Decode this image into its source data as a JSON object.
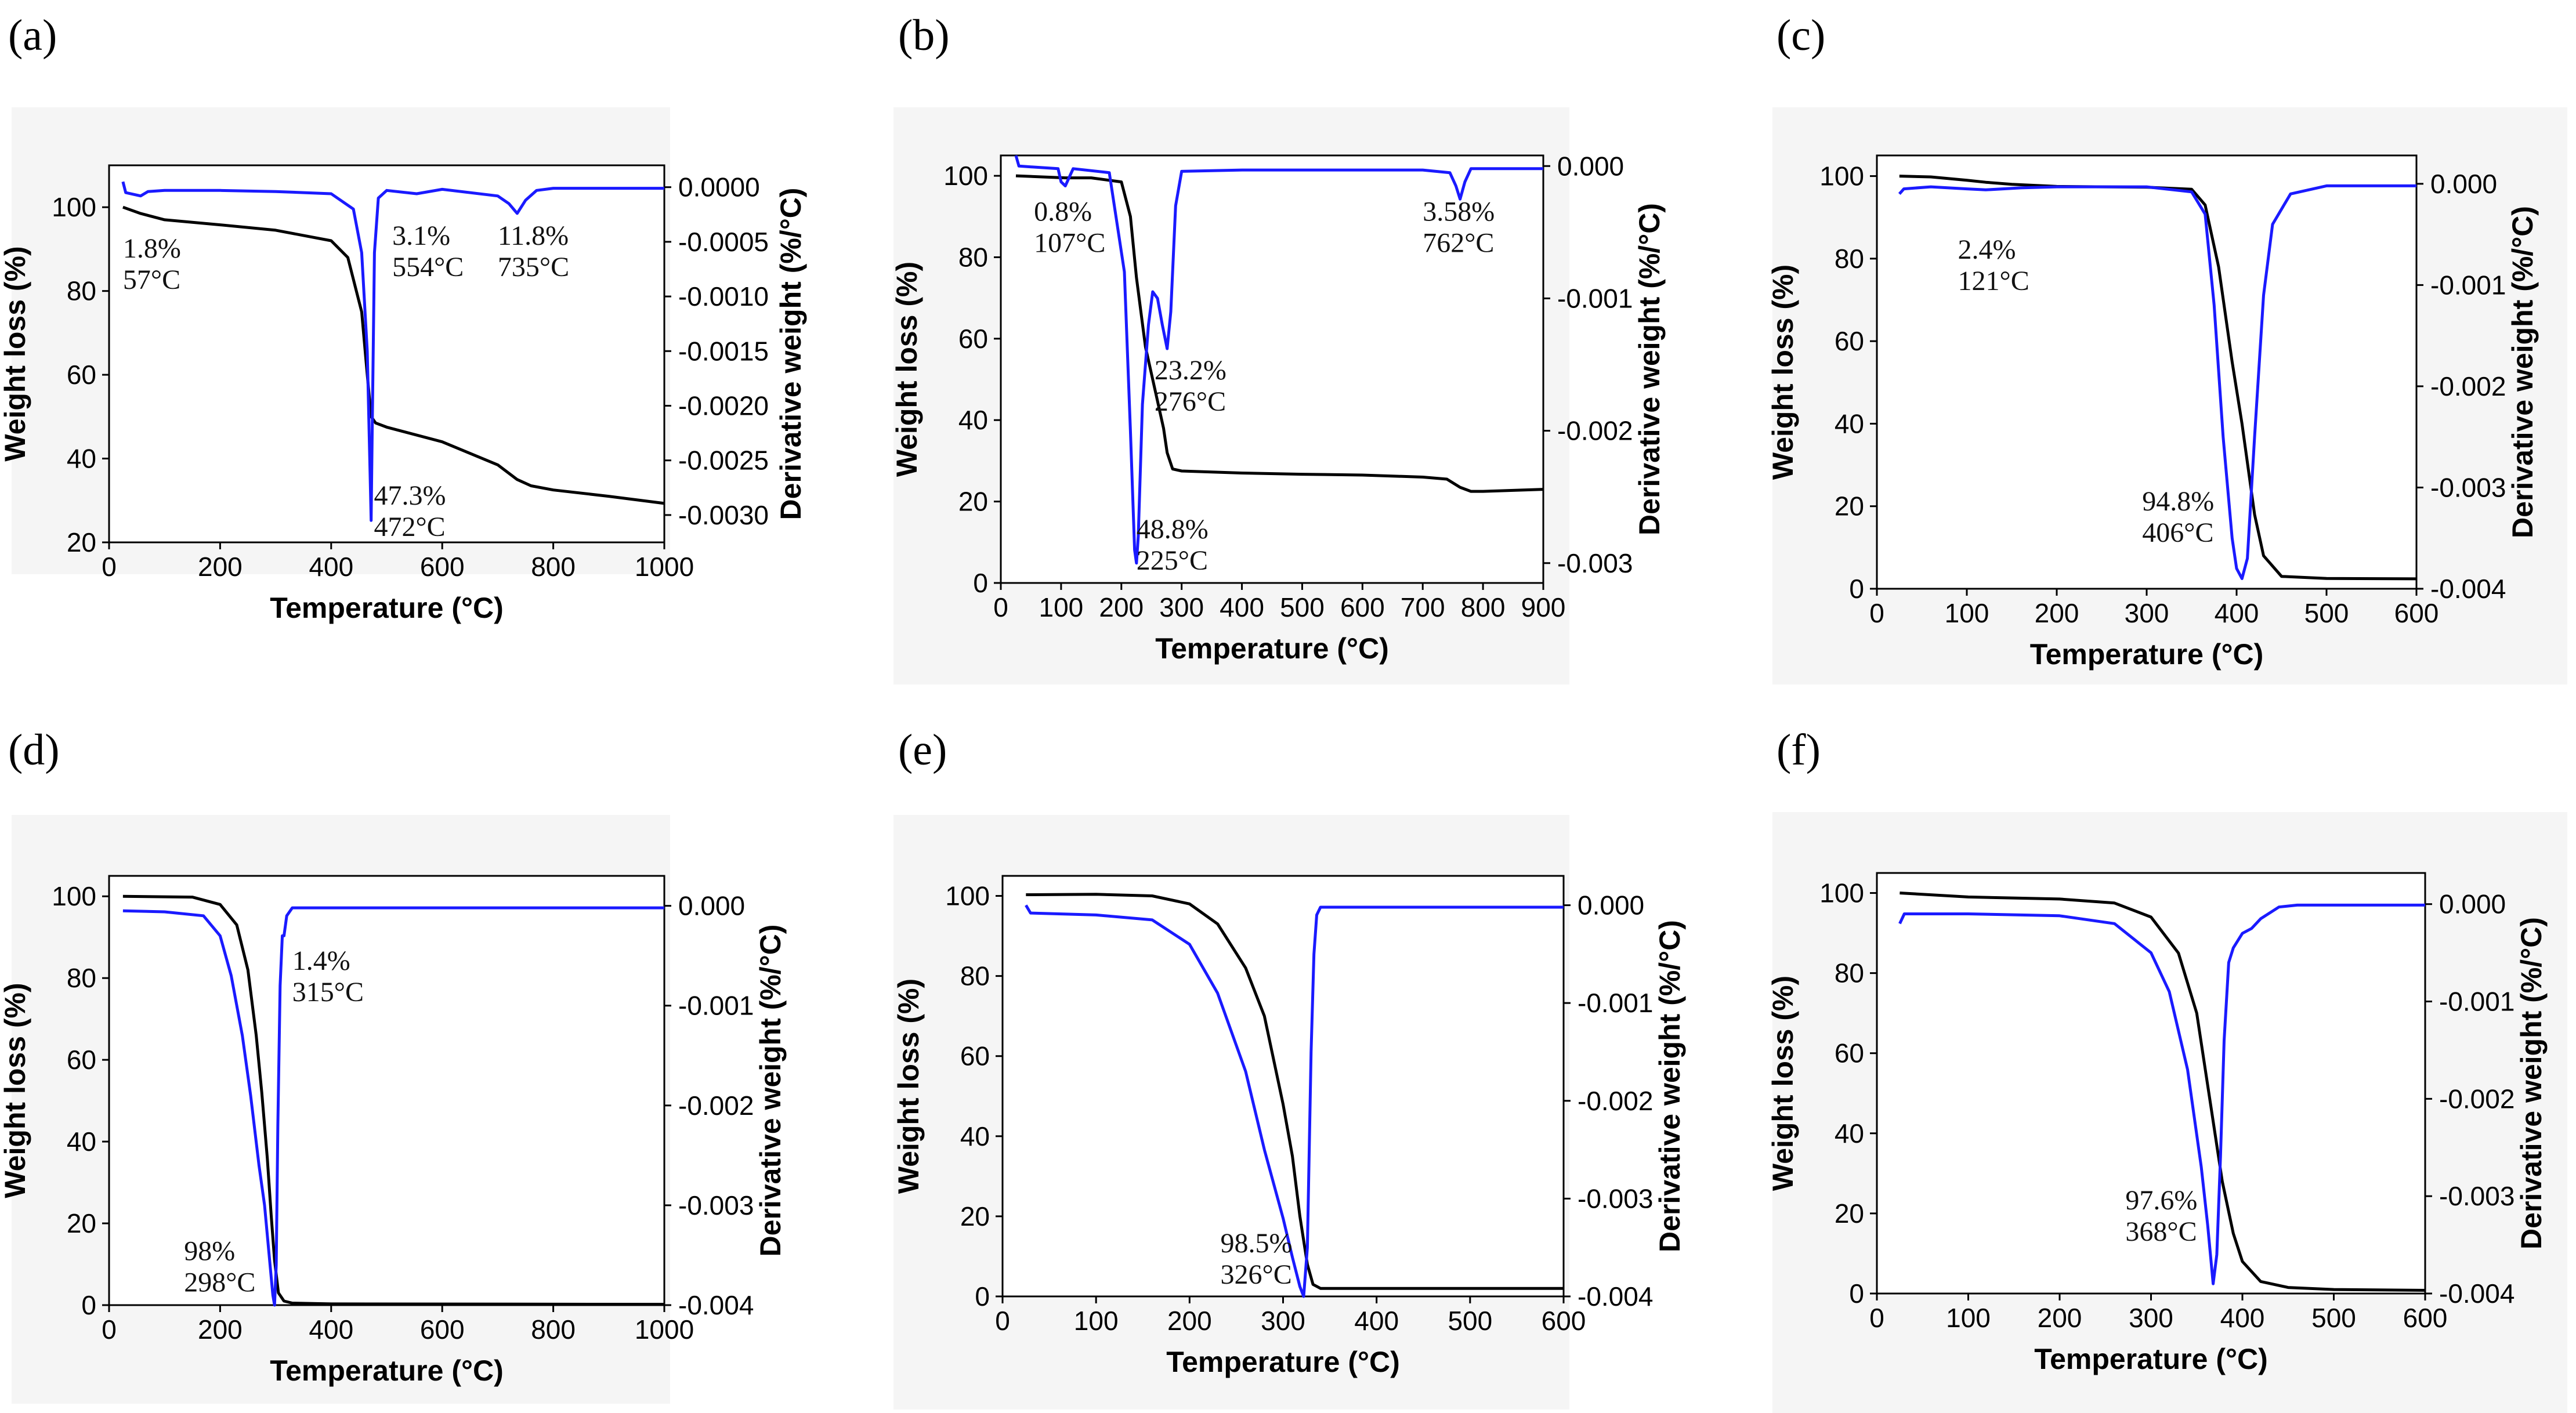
{
  "figure": {
    "colors": {
      "weight": "#000000",
      "derivative": "#1a1aff",
      "axis": "#000000",
      "panel_bg": "#f5f5f5"
    }
  },
  "chart_data": [
    {
      "panel": "(a)",
      "type": "line",
      "xlabel": "Temperature (°C)",
      "ylabel": "Weight loss (%)",
      "y2label": "Derivative weight (%/°C)",
      "xlim": [
        0,
        1000
      ],
      "ylim": [
        20,
        110
      ],
      "y2lim": [
        -0.00325,
        0.0002
      ],
      "xticks": [
        "0",
        "200",
        "400",
        "600",
        "800",
        "1000"
      ],
      "xtick_values": [
        0,
        200,
        400,
        600,
        800,
        1000
      ],
      "yticks": [
        "20",
        "40",
        "60",
        "80",
        "100"
      ],
      "ytick_values": [
        20,
        40,
        60,
        80,
        100
      ],
      "y2ticks": [
        "0.0000",
        "-0.0005",
        "-0.0010",
        "-0.0015",
        "-0.0020",
        "-0.0025",
        "-0.0030"
      ],
      "y2tick_values": [
        0,
        -0.0005,
        -0.001,
        -0.0015,
        -0.002,
        -0.0025,
        -0.003
      ],
      "series": [
        {
          "name": "Weight loss",
          "axis": "left",
          "color": "#000000",
          "x": [
            25,
            57,
            100,
            200,
            300,
            400,
            430,
            455,
            465,
            472,
            480,
            500,
            600,
            700,
            735,
            760,
            800,
            900,
            1000
          ],
          "y": [
            100,
            98.5,
            97,
            95.8,
            94.5,
            92,
            88,
            75,
            60,
            50,
            48.5,
            47.5,
            44,
            38.5,
            35,
            33.5,
            32.5,
            31,
            29.3
          ]
        },
        {
          "name": "Derivative weight",
          "axis": "right",
          "color": "#1a1aff",
          "x": [
            25,
            30,
            57,
            70,
            100,
            200,
            300,
            400,
            440,
            455,
            465,
            470,
            472,
            474,
            478,
            485,
            500,
            554,
            600,
            700,
            720,
            735,
            750,
            770,
            800,
            1000
          ],
          "y": [
            5e-05,
            -5e-05,
            -8e-05,
            -4e-05,
            -3e-05,
            -3e-05,
            -4e-05,
            -6e-05,
            -0.0002,
            -0.0006,
            -0.0015,
            -0.0026,
            -0.00305,
            -0.0022,
            -0.0006,
            -0.0001,
            -3e-05,
            -6e-05,
            -2e-05,
            -8e-05,
            -0.00015,
            -0.00024,
            -0.00012,
            -3e-05,
            -1e-05,
            -1e-05
          ]
        }
      ],
      "annotations": [
        {
          "lines": [
            "1.8%",
            "57°C"
          ],
          "x": 25,
          "y": 88
        },
        {
          "lines": [
            "3.1%",
            "554°C"
          ],
          "x": 510,
          "y": 91
        },
        {
          "lines": [
            "11.8%",
            "735°C"
          ],
          "x": 700,
          "y": 91
        },
        {
          "lines": [
            "47.3%",
            "472°C"
          ],
          "x": 477,
          "y": 29
        }
      ]
    },
    {
      "panel": "(b)",
      "type": "line",
      "xlabel": "Temperature (°C)",
      "ylabel": "Weight loss (%)",
      "y2label": "Derivative weight (%/°C)",
      "xlim": [
        0,
        900
      ],
      "ylim": [
        0,
        105
      ],
      "y2lim": [
        -0.00315,
        8e-05
      ],
      "xticks": [
        "0",
        "100",
        "200",
        "300",
        "400",
        "500",
        "600",
        "700",
        "800",
        "900"
      ],
      "xtick_values": [
        0,
        100,
        200,
        300,
        400,
        500,
        600,
        700,
        800,
        900
      ],
      "yticks": [
        "0",
        "20",
        "40",
        "60",
        "80",
        "100"
      ],
      "ytick_values": [
        0,
        20,
        40,
        60,
        80,
        100
      ],
      "y2ticks": [
        "0.000",
        "-0.001",
        "-0.002",
        "-0.003"
      ],
      "y2tick_values": [
        0,
        -0.001,
        -0.002,
        -0.003
      ],
      "series": [
        {
          "name": "Weight loss",
          "axis": "left",
          "color": "#000000",
          "x": [
            25,
            107,
            150,
            200,
            215,
            225,
            240,
            255,
            270,
            276,
            285,
            300,
            400,
            500,
            600,
            700,
            740,
            762,
            780,
            800,
            900
          ],
          "y": [
            100,
            99.5,
            99.5,
            98.5,
            90,
            75,
            58,
            48,
            38,
            32,
            28,
            27.5,
            27,
            26.7,
            26.5,
            26,
            25.5,
            23.5,
            22.5,
            22.5,
            23
          ]
        },
        {
          "name": "Derivative weight",
          "axis": "right",
          "color": "#1a1aff",
          "x": [
            25,
            30,
            95,
            100,
            107,
            112,
            120,
            180,
            205,
            215,
            222,
            225,
            228,
            235,
            245,
            252,
            260,
            268,
            276,
            282,
            290,
            300,
            400,
            500,
            600,
            700,
            745,
            755,
            762,
            770,
            780,
            900
          ],
          "y": [
            8e-05,
            0.0,
            -2e-05,
            -0.00012,
            -0.00015,
            -0.0001,
            -2e-05,
            -5e-05,
            -0.0008,
            -0.002,
            -0.0029,
            -0.003,
            -0.0028,
            -0.0018,
            -0.0012,
            -0.00095,
            -0.001,
            -0.0012,
            -0.00138,
            -0.0011,
            -0.0003,
            -4e-05,
            -3e-05,
            -3e-05,
            -3e-05,
            -3e-05,
            -5e-05,
            -0.00015,
            -0.00025,
            -0.00012,
            -2e-05,
            -2e-05
          ]
        }
      ],
      "annotations": [
        {
          "lines": [
            "0.8%",
            "107°C"
          ],
          "x": 55,
          "y": 89
        },
        {
          "lines": [
            "3.58%",
            "762°C"
          ],
          "x": 700,
          "y": 89
        },
        {
          "lines": [
            "23.2%",
            "276°C"
          ],
          "x": 255,
          "y": 50
        },
        {
          "lines": [
            "48.8%",
            "225°C"
          ],
          "x": 225,
          "y": 11
        }
      ]
    },
    {
      "panel": "(c)",
      "type": "line",
      "xlabel": "Temperature (°C)",
      "ylabel": "Weight loss (%)",
      "y2label": "Derivative weight (%/°C)",
      "xlim": [
        0,
        600
      ],
      "ylim": [
        0,
        105
      ],
      "y2lim": [
        -0.004,
        0.00028
      ],
      "xticks": [
        "0",
        "100",
        "200",
        "300",
        "400",
        "500",
        "600"
      ],
      "xtick_values": [
        0,
        100,
        200,
        300,
        400,
        500,
        600
      ],
      "yticks": [
        "0",
        "20",
        "40",
        "60",
        "80",
        "100"
      ],
      "ytick_values": [
        0,
        20,
        40,
        60,
        80,
        100
      ],
      "y2ticks": [
        "0.000",
        "-0.001",
        "-0.002",
        "-0.003",
        "-0.004"
      ],
      "y2tick_values": [
        0,
        -0.001,
        -0.002,
        -0.003,
        -0.004
      ],
      "series": [
        {
          "name": "Weight loss",
          "axis": "left",
          "color": "#000000",
          "x": [
            25,
            60,
            100,
            121,
            150,
            200,
            300,
            350,
            365,
            380,
            395,
            406,
            420,
            430,
            450,
            500,
            600
          ],
          "y": [
            100,
            99.8,
            99,
            98.5,
            98,
            97.5,
            97.3,
            96.8,
            93,
            78,
            55,
            40,
            18,
            8,
            3,
            2.5,
            2.4
          ]
        },
        {
          "name": "Derivative weight",
          "axis": "right",
          "color": "#1a1aff",
          "x": [
            25,
            30,
            60,
            100,
            121,
            160,
            200,
            300,
            350,
            365,
            375,
            385,
            395,
            400,
            406,
            412,
            420,
            430,
            440,
            460,
            500,
            600
          ],
          "y": [
            -0.0001,
            -5e-05,
            -3e-05,
            -5e-05,
            -6e-05,
            -4e-05,
            -3e-05,
            -3e-05,
            -8e-05,
            -0.0003,
            -0.0012,
            -0.0025,
            -0.0035,
            -0.0038,
            -0.0039,
            -0.0037,
            -0.0025,
            -0.0011,
            -0.0004,
            -0.0001,
            -2e-05,
            -2e-05
          ]
        }
      ],
      "annotations": [
        {
          "lines": [
            "2.4%",
            "121°C"
          ],
          "x": 90,
          "y": 80
        },
        {
          "lines": [
            "94.8%",
            "406°C"
          ],
          "x": 295,
          "y": 19
        }
      ]
    },
    {
      "panel": "(d)",
      "type": "line",
      "xlabel": "Temperature (°C)",
      "ylabel": "Weight loss (%)",
      "y2label": "Derivative weight (%/°C)",
      "xlim": [
        0,
        1000
      ],
      "ylim": [
        0,
        105
      ],
      "y2lim": [
        -0.004,
        0.0003
      ],
      "xticks": [
        "0",
        "200",
        "400",
        "600",
        "800",
        "1000"
      ],
      "xtick_values": [
        0,
        200,
        400,
        600,
        800,
        1000
      ],
      "yticks": [
        "0",
        "20",
        "40",
        "60",
        "80",
        "100"
      ],
      "ytick_values": [
        0,
        20,
        40,
        60,
        80,
        100
      ],
      "y2ticks": [
        "0.000",
        "-0.001",
        "-0.002",
        "-0.003",
        "-0.004"
      ],
      "y2tick_values": [
        0,
        -0.001,
        -0.002,
        -0.003,
        -0.004
      ],
      "series": [
        {
          "name": "Weight loss",
          "axis": "left",
          "color": "#000000",
          "x": [
            25,
            150,
            200,
            230,
            250,
            265,
            275,
            285,
            292,
            298,
            305,
            315,
            330,
            400,
            1000
          ],
          "y": [
            100,
            99.8,
            98,
            93,
            82,
            66,
            52,
            36,
            22,
            11,
            3,
            1,
            0.5,
            0.3,
            0.2
          ]
        },
        {
          "name": "Derivative weight",
          "axis": "right",
          "color": "#1a1aff",
          "x": [
            25,
            100,
            170,
            200,
            220,
            240,
            255,
            270,
            280,
            290,
            295,
            298,
            301,
            304,
            308,
            312,
            315,
            320,
            330,
            400,
            1000
          ],
          "y": [
            -5e-05,
            -6e-05,
            -0.0001,
            -0.0003,
            -0.0007,
            -0.0013,
            -0.0019,
            -0.0026,
            -0.003,
            -0.0036,
            -0.0039,
            -0.004,
            -0.0036,
            -0.0022,
            -0.0008,
            -0.0003,
            -0.0003,
            -0.0001,
            -2e-05,
            -2e-05,
            -2e-05
          ]
        }
      ],
      "annotations": [
        {
          "lines": [
            "1.4%",
            "315°C"
          ],
          "x": 330,
          "y": 82
        },
        {
          "lines": [
            "98%",
            "298°C"
          ],
          "x": 135,
          "y": 11
        }
      ]
    },
    {
      "panel": "(e)",
      "type": "line",
      "xlabel": "Temperature (°C)",
      "ylabel": "Weight loss (%)",
      "y2label": "Derivative weight (%/°C)",
      "xlim": [
        0,
        600
      ],
      "ylim": [
        0,
        105
      ],
      "y2lim": [
        -0.004,
        0.0003
      ],
      "xticks": [
        "0",
        "100",
        "200",
        "300",
        "400",
        "500",
        "600"
      ],
      "xtick_values": [
        0,
        100,
        200,
        300,
        400,
        500,
        600
      ],
      "yticks": [
        "0",
        "20",
        "40",
        "60",
        "80",
        "100"
      ],
      "ytick_values": [
        0,
        20,
        40,
        60,
        80,
        100
      ],
      "y2ticks": [
        "0.000",
        "-0.001",
        "-0.002",
        "-0.003",
        "-0.004"
      ],
      "y2tick_values": [
        0,
        -0.001,
        -0.002,
        -0.003,
        -0.004
      ],
      "series": [
        {
          "name": "Weight loss",
          "axis": "left",
          "color": "#000000",
          "x": [
            25,
            100,
            160,
            200,
            230,
            260,
            280,
            300,
            310,
            318,
            326,
            332,
            340,
            400,
            600
          ],
          "y": [
            100.3,
            100.4,
            100,
            98,
            93,
            82,
            70,
            48,
            35,
            20,
            8,
            3,
            2,
            2,
            2
          ]
        },
        {
          "name": "Derivative weight",
          "axis": "right",
          "color": "#1a1aff",
          "x": [
            25,
            30,
            100,
            160,
            200,
            230,
            260,
            280,
            300,
            310,
            318,
            322,
            326,
            330,
            333,
            336,
            340,
            400,
            600
          ],
          "y": [
            0.0,
            -8e-05,
            -0.0001,
            -0.00015,
            -0.0004,
            -0.0009,
            -0.0017,
            -0.0025,
            -0.0032,
            -0.0036,
            -0.0039,
            -0.004,
            -0.0035,
            -0.0015,
            -0.0005,
            -0.0001,
            -2e-05,
            -2e-05,
            -2e-05
          ]
        }
      ],
      "annotations": [
        {
          "lines": [
            "98.5%",
            "326°C"
          ],
          "x": 233,
          "y": 11
        }
      ]
    },
    {
      "panel": "(f)",
      "type": "line",
      "xlabel": "Temperature (°C)",
      "ylabel": "Weight loss (%)",
      "y2label": "Derivative weight (%/°C)",
      "xlim": [
        0,
        600
      ],
      "ylim": [
        0,
        105
      ],
      "y2lim": [
        -0.004,
        0.00032
      ],
      "xticks": [
        "0",
        "100",
        "200",
        "300",
        "400",
        "500",
        "600"
      ],
      "xtick_values": [
        0,
        100,
        200,
        300,
        400,
        500,
        600
      ],
      "yticks": [
        "0",
        "20",
        "40",
        "60",
        "80",
        "100"
      ],
      "ytick_values": [
        0,
        20,
        40,
        60,
        80,
        100
      ],
      "y2ticks": [
        "0.000",
        "-0.001",
        "-0.002",
        "-0.003",
        "-0.004"
      ],
      "y2tick_values": [
        0,
        -0.001,
        -0.002,
        -0.003,
        -0.004
      ],
      "series": [
        {
          "name": "Weight loss",
          "axis": "left",
          "color": "#000000",
          "x": [
            25,
            100,
            200,
            260,
            300,
            330,
            350,
            360,
            368,
            378,
            390,
            400,
            420,
            450,
            500,
            600
          ],
          "y": [
            100,
            99,
            98.5,
            97.5,
            94,
            85,
            70,
            55,
            43,
            28,
            15,
            8,
            3,
            1.5,
            1,
            0.8
          ]
        },
        {
          "name": "Derivative weight",
          "axis": "right",
          "color": "#1a1aff",
          "x": [
            25,
            30,
            100,
            200,
            260,
            300,
            320,
            340,
            355,
            362,
            368,
            372,
            376,
            380,
            385,
            390,
            400,
            410,
            420,
            440,
            460,
            500,
            600
          ],
          "y": [
            -0.0002,
            -0.0001,
            -0.0001,
            -0.00012,
            -0.0002,
            -0.0005,
            -0.0009,
            -0.0017,
            -0.0027,
            -0.0033,
            -0.0039,
            -0.0036,
            -0.0026,
            -0.0014,
            -0.0006,
            -0.00045,
            -0.0003,
            -0.00025,
            -0.00015,
            -3e-05,
            -1e-05,
            -1e-05,
            -1e-05
          ]
        }
      ],
      "annotations": [
        {
          "lines": [
            "97.6%",
            "368°C"
          ],
          "x": 272,
          "y": 21
        }
      ]
    }
  ]
}
